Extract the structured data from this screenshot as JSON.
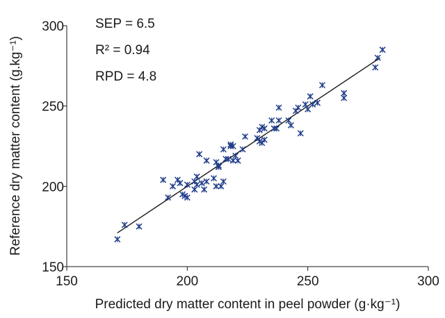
{
  "chart_data": {
    "type": "scatter",
    "title": "",
    "xlabel": "Predicted dry matter content in peel powder (g·kg⁻¹)",
    "ylabel": "Reference dry matter content (g.kg⁻¹)",
    "xlim": [
      150,
      300
    ],
    "ylim": [
      150,
      300
    ],
    "xticks": [
      150,
      200,
      250,
      300
    ],
    "yticks": [
      150,
      200,
      250,
      300
    ],
    "grid": false,
    "legend": "none",
    "marker": "x",
    "marker_color": "#1f3c8a",
    "annotations": [
      "SEP = 6.5",
      "R² = 0.94",
      "RPD = 4.8"
    ],
    "fit_line": {
      "x": [
        171,
        280
      ],
      "y": [
        171,
        280
      ]
    },
    "points": [
      [
        171,
        167
      ],
      [
        174,
        176
      ],
      [
        180,
        175
      ],
      [
        190,
        204
      ],
      [
        192,
        193
      ],
      [
        194,
        200
      ],
      [
        196,
        204
      ],
      [
        197,
        202
      ],
      [
        198,
        195
      ],
      [
        199,
        194
      ],
      [
        200,
        193
      ],
      [
        200,
        201
      ],
      [
        203,
        198
      ],
      [
        203,
        203
      ],
      [
        204,
        201
      ],
      [
        204,
        206
      ],
      [
        205,
        220
      ],
      [
        206,
        202
      ],
      [
        207,
        198
      ],
      [
        208,
        203
      ],
      [
        208,
        216
      ],
      [
        211,
        205
      ],
      [
        212,
        200
      ],
      [
        212,
        215
      ],
      [
        213,
        213
      ],
      [
        213,
        212
      ],
      [
        214,
        200
      ],
      [
        215,
        203
      ],
      [
        215,
        223
      ],
      [
        216,
        217
      ],
      [
        217,
        217
      ],
      [
        218,
        225
      ],
      [
        218,
        226
      ],
      [
        219,
        225
      ],
      [
        219,
        216
      ],
      [
        220,
        219
      ],
      [
        221,
        216
      ],
      [
        223,
        223
      ],
      [
        224,
        231
      ],
      [
        229,
        230
      ],
      [
        230,
        228
      ],
      [
        230,
        235
      ],
      [
        231,
        237
      ],
      [
        231,
        227
      ],
      [
        232,
        236
      ],
      [
        232,
        229
      ],
      [
        235,
        241
      ],
      [
        236,
        236
      ],
      [
        237,
        236
      ],
      [
        238,
        249
      ],
      [
        238,
        241
      ],
      [
        242,
        241
      ],
      [
        243,
        238
      ],
      [
        245,
        247
      ],
      [
        246,
        249
      ],
      [
        247,
        233
      ],
      [
        249,
        251
      ],
      [
        250,
        248
      ],
      [
        251,
        256
      ],
      [
        252,
        251
      ],
      [
        254,
        252
      ],
      [
        256,
        263
      ],
      [
        265,
        255
      ],
      [
        265,
        258
      ],
      [
        278,
        274
      ],
      [
        279,
        280
      ],
      [
        281,
        285
      ]
    ]
  }
}
